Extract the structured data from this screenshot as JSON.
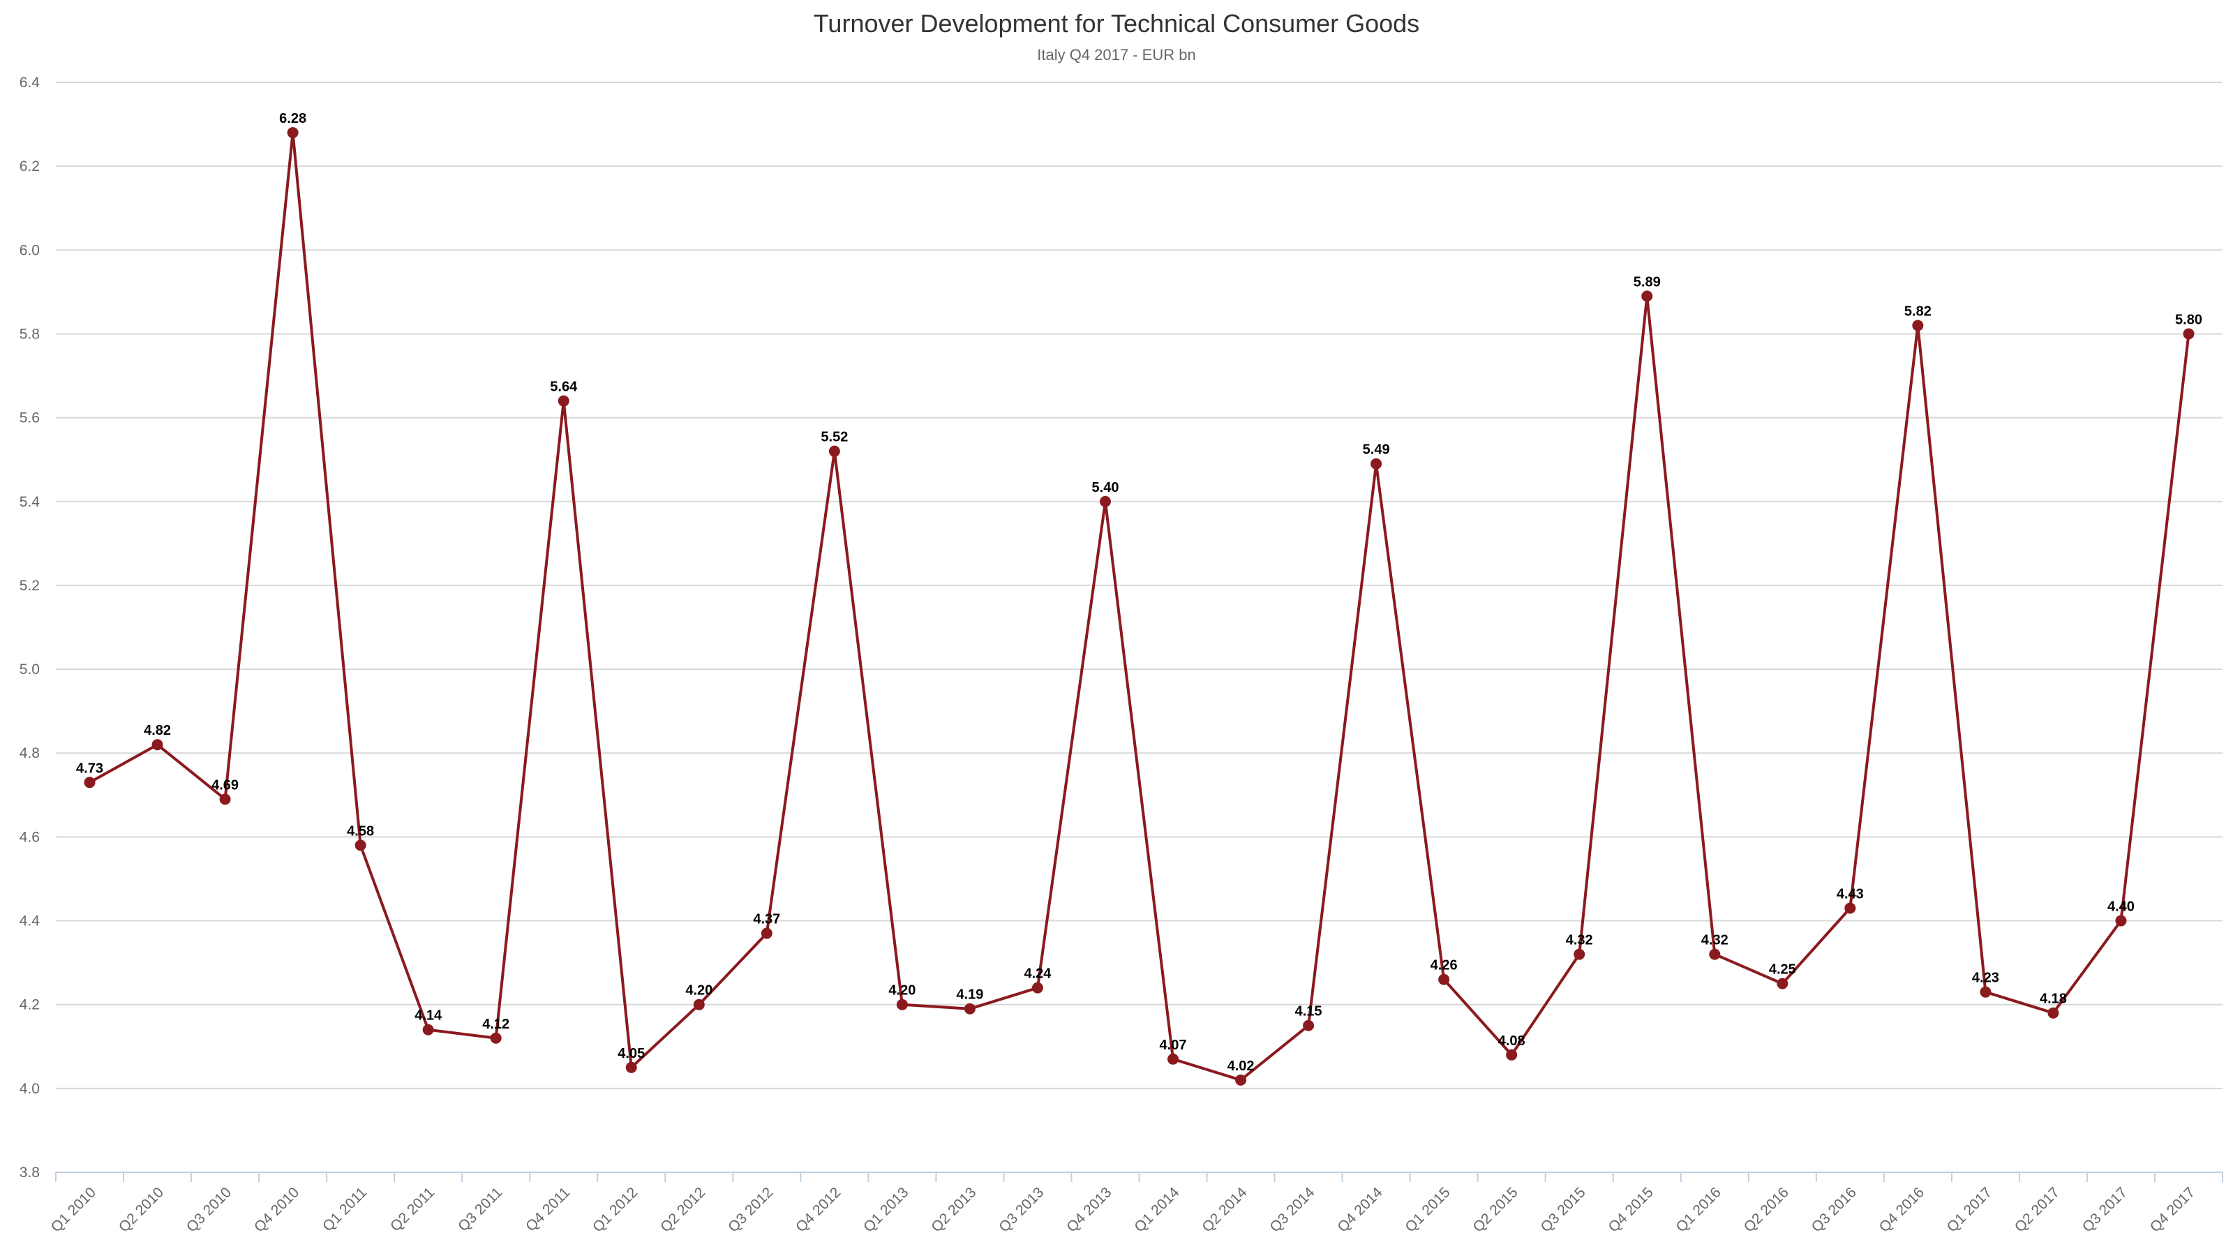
{
  "chart_data": {
    "type": "line",
    "title": "Turnover Development for Technical Consumer Goods",
    "subtitle": "Italy Q4 2017 - EUR bn",
    "xlabel": "",
    "ylabel": "",
    "ylim": [
      3.8,
      6.4
    ],
    "yticks": [
      "3.8",
      "4.0",
      "4.2",
      "4.4",
      "4.6",
      "4.8",
      "5.0",
      "5.2",
      "5.4",
      "5.6",
      "5.8",
      "6.0",
      "6.2",
      "6.4"
    ],
    "categories": [
      "Q1 2010",
      "Q2 2010",
      "Q3 2010",
      "Q4 2010",
      "Q1 2011",
      "Q2 2011",
      "Q3 2011",
      "Q4 2011",
      "Q1 2012",
      "Q2 2012",
      "Q3 2012",
      "Q4 2012",
      "Q1 2013",
      "Q2 2013",
      "Q3 2013",
      "Q4 2013",
      "Q1 2014",
      "Q2 2014",
      "Q3 2014",
      "Q4 2014",
      "Q1 2015",
      "Q2 2015",
      "Q3 2015",
      "Q4 2015",
      "Q1 2016",
      "Q2 2016",
      "Q3 2016",
      "Q4 2016",
      "Q1 2017",
      "Q2 2017",
      "Q3 2017",
      "Q4 2017"
    ],
    "series": [
      {
        "values": [
          4.73,
          4.82,
          4.69,
          6.28,
          4.58,
          4.14,
          4.12,
          5.64,
          4.05,
          4.2,
          4.37,
          5.52,
          4.2,
          4.19,
          4.24,
          5.4,
          4.07,
          4.02,
          4.15,
          5.49,
          4.26,
          4.08,
          4.32,
          5.89,
          4.32,
          4.25,
          4.43,
          5.82,
          4.23,
          4.18,
          4.4,
          5.8
        ],
        "labels": [
          "4.73",
          "4.82",
          "4.69",
          "6.28",
          "4.58",
          "4.14",
          "4.12",
          "5.64",
          "4.05",
          "4.20",
          "4.37",
          "5.52",
          "4.20",
          "4.19",
          "4.24",
          "5.40",
          "4.07",
          "4.02",
          "4.15",
          "5.49",
          "4.26",
          "4.08",
          "4.32",
          "5.89",
          "4.32",
          "4.25",
          "4.43",
          "5.82",
          "4.23",
          "4.18",
          "4.40",
          "5.80"
        ]
      }
    ],
    "grid": true,
    "legend": "none",
    "colors": {
      "line": "#8b1a1f",
      "grid": "#d8d8d8",
      "text": "#666666"
    }
  }
}
